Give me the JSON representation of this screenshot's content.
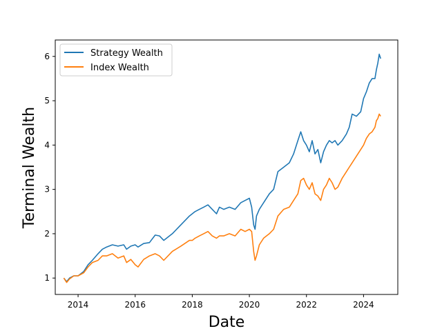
{
  "chart_data": {
    "type": "line",
    "title": "",
    "xlabel": "Date",
    "ylabel": "Terminal Wealth",
    "xlim": [
      2013.2,
      2025.2
    ],
    "ylim": [
      0.63,
      6.37
    ],
    "x_ticks": [
      2014,
      2016,
      2018,
      2020,
      2022,
      2024
    ],
    "x_tick_labels": [
      "2014",
      "2016",
      "2018",
      "2020",
      "2022",
      "2024"
    ],
    "y_ticks": [
      1,
      2,
      3,
      4,
      5,
      6
    ],
    "y_tick_labels": [
      "1",
      "2",
      "3",
      "4",
      "5",
      "6"
    ],
    "grid": false,
    "legend_position": "upper left",
    "series": [
      {
        "name": "Strategy Wealth",
        "color": "#1f77b4",
        "x": [
          2013.5,
          2013.6,
          2013.7,
          2013.85,
          2014.0,
          2014.2,
          2014.35,
          2014.5,
          2014.7,
          2014.85,
          2015.0,
          2015.2,
          2015.4,
          2015.6,
          2015.7,
          2015.85,
          2016.0,
          2016.1,
          2016.3,
          2016.5,
          2016.7,
          2016.85,
          2017.0,
          2017.3,
          2017.6,
          2017.9,
          2018.0,
          2018.1,
          2018.25,
          2018.4,
          2018.55,
          2018.7,
          2018.85,
          2018.95,
          2019.1,
          2019.3,
          2019.5,
          2019.7,
          2019.85,
          2020.0,
          2020.08,
          2020.15,
          2020.2,
          2020.25,
          2020.35,
          2020.5,
          2020.7,
          2020.85,
          2021.0,
          2021.2,
          2021.4,
          2021.55,
          2021.7,
          2021.8,
          2021.9,
          2022.0,
          2022.1,
          2022.2,
          2022.3,
          2022.4,
          2022.5,
          2022.6,
          2022.7,
          2022.8,
          2022.9,
          2023.0,
          2023.1,
          2023.25,
          2023.4,
          2023.5,
          2023.6,
          2023.75,
          2023.9,
          2024.0,
          2024.1,
          2024.2,
          2024.3,
          2024.4,
          2024.45,
          2024.5,
          2024.55,
          2024.6
        ],
        "values": [
          1.0,
          0.92,
          1.0,
          1.05,
          1.05,
          1.15,
          1.3,
          1.4,
          1.55,
          1.65,
          1.7,
          1.75,
          1.72,
          1.75,
          1.65,
          1.72,
          1.75,
          1.7,
          1.78,
          1.8,
          1.97,
          1.95,
          1.85,
          2.0,
          2.2,
          2.4,
          2.45,
          2.5,
          2.55,
          2.6,
          2.65,
          2.55,
          2.45,
          2.6,
          2.55,
          2.6,
          2.55,
          2.7,
          2.75,
          2.8,
          2.6,
          2.2,
          2.1,
          2.4,
          2.55,
          2.7,
          2.9,
          3.0,
          3.4,
          3.5,
          3.6,
          3.8,
          4.1,
          4.3,
          4.1,
          4.0,
          3.85,
          4.1,
          3.8,
          3.9,
          3.6,
          3.85,
          4.0,
          4.1,
          4.05,
          4.1,
          4.0,
          4.1,
          4.25,
          4.4,
          4.7,
          4.65,
          4.75,
          5.05,
          5.2,
          5.4,
          5.5,
          5.5,
          5.7,
          5.85,
          6.05,
          5.95
        ]
      },
      {
        "name": "Index Wealth",
        "color": "#ff7f0e",
        "x": [
          2013.5,
          2013.6,
          2013.7,
          2013.85,
          2014.0,
          2014.2,
          2014.35,
          2014.5,
          2014.7,
          2014.85,
          2015.0,
          2015.2,
          2015.4,
          2015.6,
          2015.7,
          2015.85,
          2016.0,
          2016.1,
          2016.3,
          2016.5,
          2016.7,
          2016.85,
          2017.0,
          2017.3,
          2017.6,
          2017.9,
          2018.0,
          2018.1,
          2018.25,
          2018.4,
          2018.55,
          2018.7,
          2018.85,
          2018.95,
          2019.1,
          2019.3,
          2019.5,
          2019.7,
          2019.85,
          2020.0,
          2020.08,
          2020.15,
          2020.2,
          2020.25,
          2020.35,
          2020.5,
          2020.7,
          2020.85,
          2021.0,
          2021.2,
          2021.4,
          2021.55,
          2021.7,
          2021.8,
          2021.9,
          2022.0,
          2022.1,
          2022.2,
          2022.3,
          2022.4,
          2022.5,
          2022.6,
          2022.7,
          2022.8,
          2022.9,
          2023.0,
          2023.1,
          2023.25,
          2023.4,
          2023.5,
          2023.6,
          2023.75,
          2023.9,
          2024.0,
          2024.1,
          2024.2,
          2024.3,
          2024.4,
          2024.45,
          2024.5,
          2024.55,
          2024.6
        ],
        "values": [
          1.0,
          0.9,
          0.98,
          1.05,
          1.05,
          1.12,
          1.25,
          1.35,
          1.4,
          1.5,
          1.5,
          1.55,
          1.45,
          1.5,
          1.35,
          1.42,
          1.3,
          1.25,
          1.42,
          1.5,
          1.55,
          1.5,
          1.4,
          1.6,
          1.72,
          1.85,
          1.85,
          1.9,
          1.95,
          2.0,
          2.05,
          1.95,
          1.9,
          1.95,
          1.95,
          2.0,
          1.95,
          2.1,
          2.05,
          2.1,
          2.05,
          1.6,
          1.4,
          1.5,
          1.75,
          1.9,
          2.0,
          2.1,
          2.4,
          2.55,
          2.6,
          2.75,
          2.9,
          3.2,
          3.25,
          3.1,
          3.0,
          3.15,
          2.9,
          2.85,
          2.75,
          3.0,
          3.1,
          3.25,
          3.15,
          3.0,
          3.05,
          3.25,
          3.4,
          3.5,
          3.6,
          3.75,
          3.9,
          4.0,
          4.15,
          4.25,
          4.3,
          4.4,
          4.55,
          4.6,
          4.7,
          4.65
        ]
      }
    ]
  }
}
